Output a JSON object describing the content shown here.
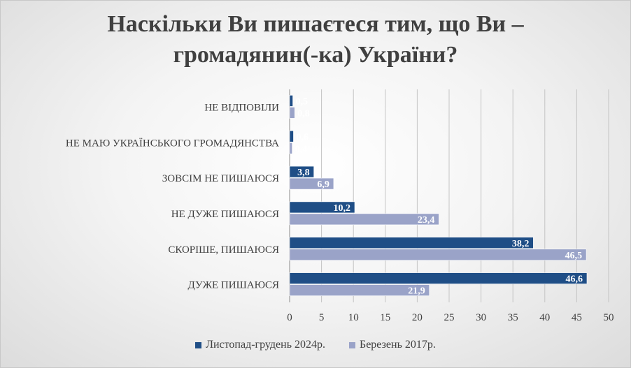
{
  "chart_data": {
    "type": "bar",
    "orientation": "horizontal",
    "title_lines": [
      "Наскільки Ви пишаєтеся тим, що Ви –",
      "громадянин(-ка) України?"
    ],
    "categories": [
      "НЕ ВІДПОВІЛИ",
      "НЕ МАЮ УКРАЇНСЬКОГО ГРОМАДЯНСТВА",
      "ЗОВСІМ НЕ ПИШАЮСЯ",
      "НЕ ДУЖЕ ПИШАЮСЯ",
      "СКОРІШЕ, ПИШАЮСЯ",
      "ДУЖЕ ПИШАЮСЯ"
    ],
    "series": [
      {
        "name": "Листопад-грудень 2024р.",
        "color": "#1f4e86",
        "values": [
          0.5,
          0.6,
          3.8,
          10.2,
          38.2,
          46.6
        ],
        "labels": [
          "0,5",
          "0,6",
          "3,8",
          "10,2",
          "38,2",
          "46,6"
        ]
      },
      {
        "name": "Березень 2017р.",
        "color": "#9aa3c8",
        "values": [
          0.8,
          0.4,
          6.9,
          23.4,
          46.5,
          21.9
        ],
        "labels": [
          "0,8",
          "0,4",
          "6,9",
          "23,4",
          "46,5",
          "21,9"
        ]
      }
    ],
    "xlim": [
      0,
      50
    ],
    "xticks": [
      "0",
      "5",
      "10",
      "15",
      "20",
      "25",
      "30",
      "35",
      "40",
      "45",
      "50"
    ],
    "grid": "vertical",
    "legend_position": "bottom"
  }
}
